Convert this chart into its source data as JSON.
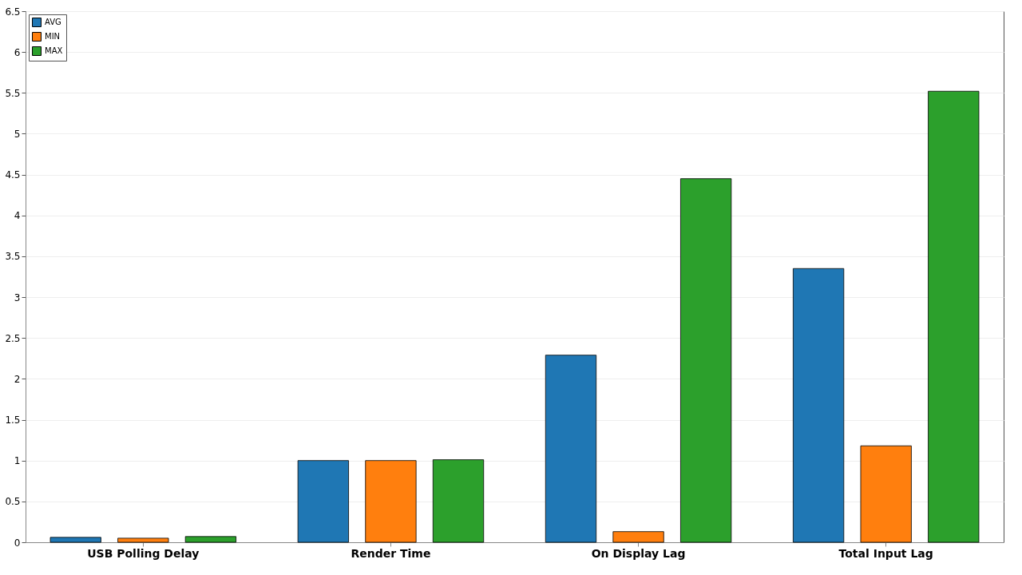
{
  "chart_data": {
    "type": "bar",
    "categories": [
      "USB Polling Delay",
      "Render Time",
      "On Display Lag",
      "Total Input Lag"
    ],
    "series": [
      {
        "name": "AVG",
        "color": "#1f77b4",
        "values": [
          0.06,
          1.0,
          2.29,
          3.35
        ]
      },
      {
        "name": "MIN",
        "color": "#ff7f0e",
        "values": [
          0.05,
          1.0,
          0.13,
          1.18
        ]
      },
      {
        "name": "MAX",
        "color": "#2ca02c",
        "values": [
          0.07,
          1.01,
          4.45,
          5.52
        ]
      }
    ],
    "ylim": [
      0,
      6.5
    ],
    "yticks": [
      0,
      0.5,
      1,
      1.5,
      2,
      2.5,
      3,
      3.5,
      4,
      4.5,
      5,
      5.5,
      6,
      6.5
    ],
    "grid": "y",
    "legend": "top left"
  }
}
